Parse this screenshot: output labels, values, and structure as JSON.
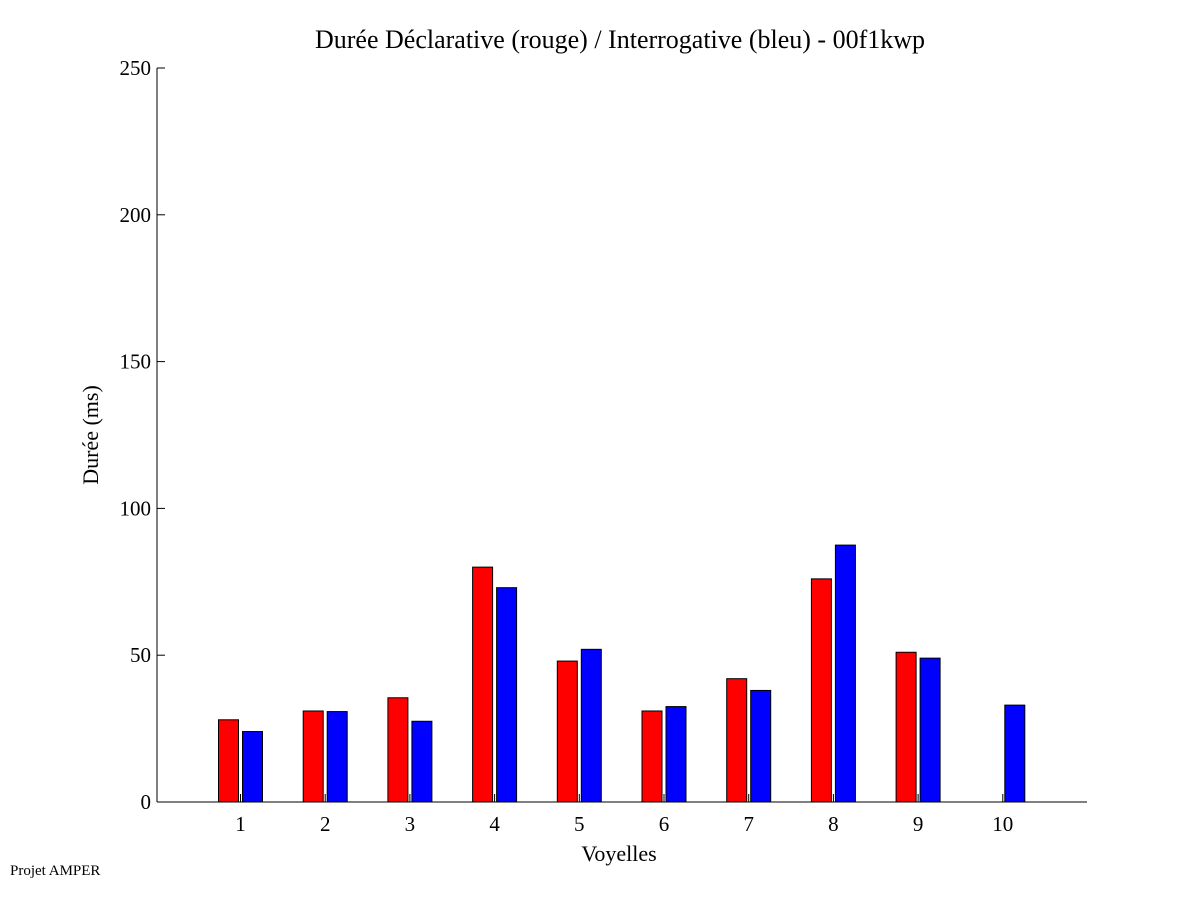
{
  "chart_data": {
    "type": "bar",
    "title": "Durée Déclarative (rouge) / Interrogative (bleu) - 00f1kwp",
    "xlabel": "Voyelles",
    "ylabel": "Durée (ms)",
    "categories": [
      "1",
      "2",
      "3",
      "4",
      "5",
      "6",
      "7",
      "8",
      "9",
      "10"
    ],
    "ylim": [
      0,
      250
    ],
    "yticks": [
      0,
      50,
      100,
      150,
      200,
      250
    ],
    "series": [
      {
        "color": "#ff0000",
        "values": [
          28,
          31,
          35.5,
          80,
          48,
          31,
          42,
          76,
          51,
          0
        ]
      },
      {
        "color": "#0000ff",
        "values": [
          24,
          30.8,
          27.5,
          73,
          52,
          32.5,
          38,
          87.5,
          49,
          33
        ]
      }
    ],
    "grid": false,
    "legend": "none"
  },
  "footer": {
    "text": "Projet AMPER"
  }
}
